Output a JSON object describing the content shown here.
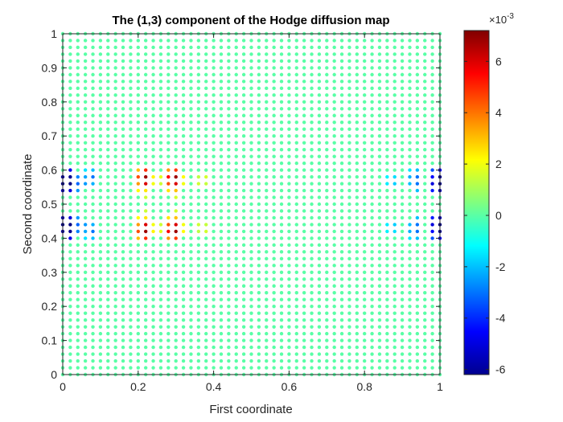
{
  "chart_data": {
    "type": "scatter",
    "title": "The (1,3) component of the Hodge diffusion map",
    "xlabel": "First coordinate",
    "ylabel": "Second coordinate",
    "xlim": [
      0,
      1
    ],
    "ylim": [
      0,
      1
    ],
    "grid": false,
    "x_ticks": [
      "0",
      "0.2",
      "0.4",
      "0.6",
      "0.8",
      "1"
    ],
    "y_ticks": [
      "0",
      "0.1",
      "0.2",
      "0.3",
      "0.4",
      "0.5",
      "0.6",
      "0.7",
      "0.8",
      "0.9",
      "1"
    ],
    "grid_points": {
      "nx": 51,
      "ny": 51,
      "x_range": [
        0,
        1
      ],
      "y_range": [
        0,
        1
      ]
    },
    "value_scale": "x10^-3",
    "colormap": "jet",
    "colorbar": {
      "exponent_label": "×10",
      "exponent": "-3",
      "range": [
        -6.2,
        7.2
      ],
      "ticks": [
        "-6",
        "-4",
        "-2",
        "0",
        "2",
        "4",
        "6"
      ]
    },
    "background_value": 0,
    "nonzero_points": [
      {
        "x": 0.0,
        "y": 0.58,
        "v": -5.8
      },
      {
        "x": 0.0,
        "y": 0.56,
        "v": -6.2
      },
      {
        "x": 0.0,
        "y": 0.54,
        "v": -5.5
      },
      {
        "x": 0.02,
        "y": 0.6,
        "v": -4.8
      },
      {
        "x": 0.02,
        "y": 0.58,
        "v": -6.0
      },
      {
        "x": 0.02,
        "y": 0.56,
        "v": -6.2
      },
      {
        "x": 0.02,
        "y": 0.54,
        "v": -5.0
      },
      {
        "x": 0.04,
        "y": 0.58,
        "v": -2.8
      },
      {
        "x": 0.04,
        "y": 0.56,
        "v": -3.2
      },
      {
        "x": 0.04,
        "y": 0.54,
        "v": -2.5
      },
      {
        "x": 0.06,
        "y": 0.6,
        "v": -1.5
      },
      {
        "x": 0.06,
        "y": 0.58,
        "v": -2.3
      },
      {
        "x": 0.06,
        "y": 0.56,
        "v": -2.5
      },
      {
        "x": 0.08,
        "y": 0.6,
        "v": -2.0
      },
      {
        "x": 0.08,
        "y": 0.58,
        "v": -3.0
      },
      {
        "x": 0.08,
        "y": 0.56,
        "v": -2.2
      },
      {
        "x": 0.0,
        "y": 0.46,
        "v": -5.5
      },
      {
        "x": 0.0,
        "y": 0.44,
        "v": -6.2
      },
      {
        "x": 0.0,
        "y": 0.42,
        "v": -5.8
      },
      {
        "x": 0.02,
        "y": 0.46,
        "v": -5.0
      },
      {
        "x": 0.02,
        "y": 0.44,
        "v": -6.2
      },
      {
        "x": 0.02,
        "y": 0.42,
        "v": -6.0
      },
      {
        "x": 0.02,
        "y": 0.4,
        "v": -4.8
      },
      {
        "x": 0.04,
        "y": 0.46,
        "v": -2.5
      },
      {
        "x": 0.04,
        "y": 0.44,
        "v": -3.2
      },
      {
        "x": 0.04,
        "y": 0.42,
        "v": -2.8
      },
      {
        "x": 0.06,
        "y": 0.44,
        "v": -2.5
      },
      {
        "x": 0.06,
        "y": 0.42,
        "v": -2.3
      },
      {
        "x": 0.06,
        "y": 0.4,
        "v": -1.5
      },
      {
        "x": 0.08,
        "y": 0.44,
        "v": -2.2
      },
      {
        "x": 0.08,
        "y": 0.42,
        "v": -3.0
      },
      {
        "x": 0.08,
        "y": 0.4,
        "v": -2.0
      },
      {
        "x": 0.2,
        "y": 0.6,
        "v": 3.0
      },
      {
        "x": 0.2,
        "y": 0.58,
        "v": 4.5
      },
      {
        "x": 0.2,
        "y": 0.56,
        "v": 3.5
      },
      {
        "x": 0.2,
        "y": 0.54,
        "v": 2.2
      },
      {
        "x": 0.22,
        "y": 0.6,
        "v": 5.0
      },
      {
        "x": 0.22,
        "y": 0.58,
        "v": 6.8
      },
      {
        "x": 0.22,
        "y": 0.56,
        "v": 6.0
      },
      {
        "x": 0.22,
        "y": 0.54,
        "v": 2.5
      },
      {
        "x": 0.22,
        "y": 0.52,
        "v": 1.5
      },
      {
        "x": 0.24,
        "y": 0.58,
        "v": 2.3
      },
      {
        "x": 0.24,
        "y": 0.56,
        "v": 2.0
      },
      {
        "x": 0.26,
        "y": 0.58,
        "v": 1.8
      },
      {
        "x": 0.26,
        "y": 0.56,
        "v": 1.5
      },
      {
        "x": 0.28,
        "y": 0.6,
        "v": 3.5
      },
      {
        "x": 0.28,
        "y": 0.58,
        "v": 5.5
      },
      {
        "x": 0.28,
        "y": 0.56,
        "v": 4.5
      },
      {
        "x": 0.28,
        "y": 0.54,
        "v": 2.5
      },
      {
        "x": 0.3,
        "y": 0.6,
        "v": 4.8
      },
      {
        "x": 0.3,
        "y": 0.58,
        "v": 6.8
      },
      {
        "x": 0.3,
        "y": 0.56,
        "v": 6.0
      },
      {
        "x": 0.3,
        "y": 0.54,
        "v": 3.0
      },
      {
        "x": 0.3,
        "y": 0.52,
        "v": 1.6
      },
      {
        "x": 0.32,
        "y": 0.58,
        "v": 2.2
      },
      {
        "x": 0.32,
        "y": 0.56,
        "v": 2.0
      },
      {
        "x": 0.36,
        "y": 0.58,
        "v": 1.3
      },
      {
        "x": 0.36,
        "y": 0.56,
        "v": 1.5
      },
      {
        "x": 0.38,
        "y": 0.58,
        "v": 1.6
      },
      {
        "x": 0.38,
        "y": 0.56,
        "v": 1.4
      },
      {
        "x": 0.2,
        "y": 0.46,
        "v": 2.2
      },
      {
        "x": 0.2,
        "y": 0.44,
        "v": 3.5
      },
      {
        "x": 0.2,
        "y": 0.42,
        "v": 4.5
      },
      {
        "x": 0.2,
        "y": 0.4,
        "v": 3.0
      },
      {
        "x": 0.22,
        "y": 0.48,
        "v": 1.5
      },
      {
        "x": 0.22,
        "y": 0.46,
        "v": 2.5
      },
      {
        "x": 0.22,
        "y": 0.44,
        "v": 6.0
      },
      {
        "x": 0.22,
        "y": 0.42,
        "v": 6.8
      },
      {
        "x": 0.22,
        "y": 0.4,
        "v": 5.0
      },
      {
        "x": 0.24,
        "y": 0.44,
        "v": 2.0
      },
      {
        "x": 0.24,
        "y": 0.42,
        "v": 2.3
      },
      {
        "x": 0.26,
        "y": 0.44,
        "v": 1.5
      },
      {
        "x": 0.26,
        "y": 0.42,
        "v": 1.8
      },
      {
        "x": 0.28,
        "y": 0.46,
        "v": 2.5
      },
      {
        "x": 0.28,
        "y": 0.44,
        "v": 4.5
      },
      {
        "x": 0.28,
        "y": 0.42,
        "v": 5.5
      },
      {
        "x": 0.28,
        "y": 0.4,
        "v": 3.5
      },
      {
        "x": 0.3,
        "y": 0.48,
        "v": 1.6
      },
      {
        "x": 0.3,
        "y": 0.46,
        "v": 3.0
      },
      {
        "x": 0.3,
        "y": 0.44,
        "v": 6.0
      },
      {
        "x": 0.3,
        "y": 0.42,
        "v": 6.8
      },
      {
        "x": 0.3,
        "y": 0.4,
        "v": 4.8
      },
      {
        "x": 0.32,
        "y": 0.44,
        "v": 2.0
      },
      {
        "x": 0.32,
        "y": 0.42,
        "v": 2.2
      },
      {
        "x": 0.36,
        "y": 0.44,
        "v": 1.5
      },
      {
        "x": 0.36,
        "y": 0.42,
        "v": 1.3
      },
      {
        "x": 0.38,
        "y": 0.44,
        "v": 1.4
      },
      {
        "x": 0.38,
        "y": 0.42,
        "v": 1.6
      },
      {
        "x": 0.86,
        "y": 0.58,
        "v": -1.3
      },
      {
        "x": 0.86,
        "y": 0.56,
        "v": -1.4
      },
      {
        "x": 0.88,
        "y": 0.58,
        "v": -1.6
      },
      {
        "x": 0.88,
        "y": 0.56,
        "v": -1.8
      },
      {
        "x": 0.92,
        "y": 0.6,
        "v": -1.5
      },
      {
        "x": 0.92,
        "y": 0.58,
        "v": -2.2
      },
      {
        "x": 0.92,
        "y": 0.56,
        "v": -2.0
      },
      {
        "x": 0.94,
        "y": 0.6,
        "v": -2.0
      },
      {
        "x": 0.94,
        "y": 0.58,
        "v": -3.0
      },
      {
        "x": 0.94,
        "y": 0.56,
        "v": -3.0
      },
      {
        "x": 0.94,
        "y": 0.54,
        "v": -2.0
      },
      {
        "x": 0.98,
        "y": 0.6,
        "v": -3.5
      },
      {
        "x": 0.98,
        "y": 0.58,
        "v": -4.5
      },
      {
        "x": 0.98,
        "y": 0.56,
        "v": -5.0
      },
      {
        "x": 0.98,
        "y": 0.54,
        "v": -4.2
      },
      {
        "x": 1.0,
        "y": 0.6,
        "v": -4.5
      },
      {
        "x": 1.0,
        "y": 0.58,
        "v": -6.0
      },
      {
        "x": 1.0,
        "y": 0.56,
        "v": -6.2
      },
      {
        "x": 1.0,
        "y": 0.54,
        "v": -5.5
      },
      {
        "x": 0.86,
        "y": 0.44,
        "v": -1.4
      },
      {
        "x": 0.86,
        "y": 0.42,
        "v": -1.3
      },
      {
        "x": 0.88,
        "y": 0.44,
        "v": -1.8
      },
      {
        "x": 0.88,
        "y": 0.42,
        "v": -1.6
      },
      {
        "x": 0.92,
        "y": 0.44,
        "v": -2.0
      },
      {
        "x": 0.92,
        "y": 0.42,
        "v": -2.2
      },
      {
        "x": 0.92,
        "y": 0.4,
        "v": -1.5
      },
      {
        "x": 0.94,
        "y": 0.46,
        "v": -2.0
      },
      {
        "x": 0.94,
        "y": 0.44,
        "v": -3.0
      },
      {
        "x": 0.94,
        "y": 0.42,
        "v": -3.0
      },
      {
        "x": 0.94,
        "y": 0.4,
        "v": -2.0
      },
      {
        "x": 0.98,
        "y": 0.46,
        "v": -4.2
      },
      {
        "x": 0.98,
        "y": 0.44,
        "v": -5.0
      },
      {
        "x": 0.98,
        "y": 0.42,
        "v": -4.5
      },
      {
        "x": 0.98,
        "y": 0.4,
        "v": -3.5
      },
      {
        "x": 1.0,
        "y": 0.46,
        "v": -5.5
      },
      {
        "x": 1.0,
        "y": 0.44,
        "v": -6.2
      },
      {
        "x": 1.0,
        "y": 0.42,
        "v": -6.0
      },
      {
        "x": 1.0,
        "y": 0.4,
        "v": -4.5
      }
    ]
  }
}
